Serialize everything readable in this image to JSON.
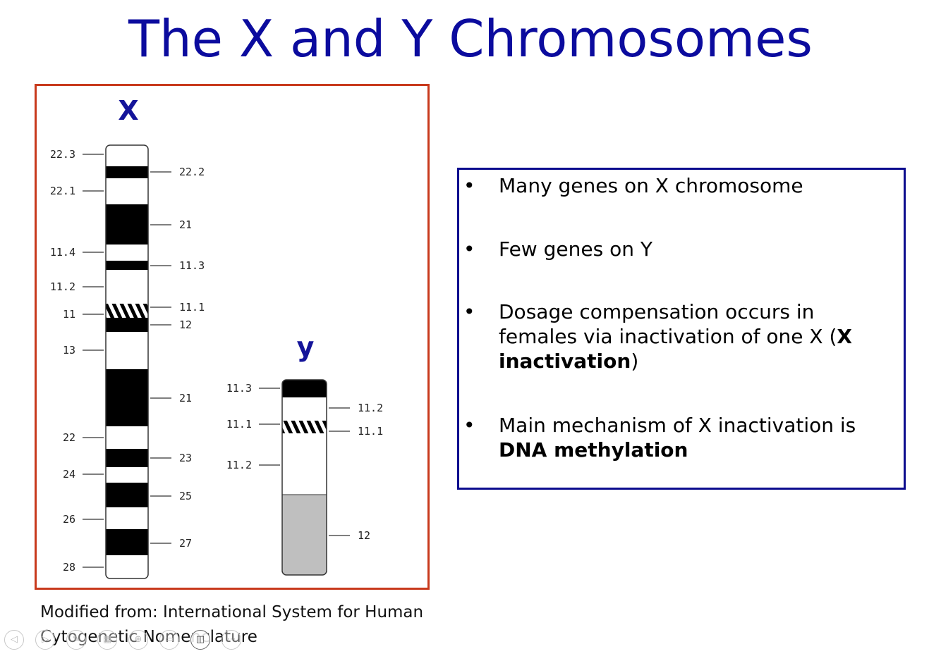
{
  "slide": {
    "title": "The X and Y Chromosomes"
  },
  "ideogram": {
    "x_label": "X",
    "y_label": "y",
    "x_bands_left": [
      "22.3",
      "22.1",
      "11.4",
      "11.2",
      "11",
      "13",
      "22",
      "24",
      "26",
      "28"
    ],
    "x_bands_right": [
      "22.2",
      "21",
      "11.3",
      "11.1",
      "12",
      "21",
      "23",
      "25",
      "27"
    ],
    "y_bands_left": [
      "11.3",
      "11.1",
      "11.2"
    ],
    "y_bands_right": [
      "11.2",
      "11.1",
      "12"
    ],
    "colors": {
      "frame": "#c8391c",
      "band_dark": "#000000",
      "band_light": "#ffffff",
      "heterochromatin": "#bfbfbf"
    }
  },
  "facts": {
    "b1": "Many genes on X chromosome",
    "b2": "Few genes on Y",
    "b3_part1": "Dosage compensation occurs in females via inactivation of one X (",
    "b3_bold": "X inactivation",
    "b3_part2": ")",
    "b4_part1": "Main mechanism of X inactivation is ",
    "b4_bold": "DNA methylation",
    "bullet_char": "•"
  },
  "caption": {
    "line1": "Modified from: International System for Human",
    "line2": "Cytogenetic Nomenclature"
  },
  "nav": {
    "icons": [
      "prev-icon",
      "next-icon",
      "pen-icon",
      "slides-icon",
      "zoom-icon",
      "subtitles-icon",
      "camera-icon",
      "more-icon"
    ],
    "glyphs": [
      "◁",
      "▷",
      "✎",
      "▦",
      "⊕",
      "▭",
      "◫",
      "⋯"
    ]
  }
}
